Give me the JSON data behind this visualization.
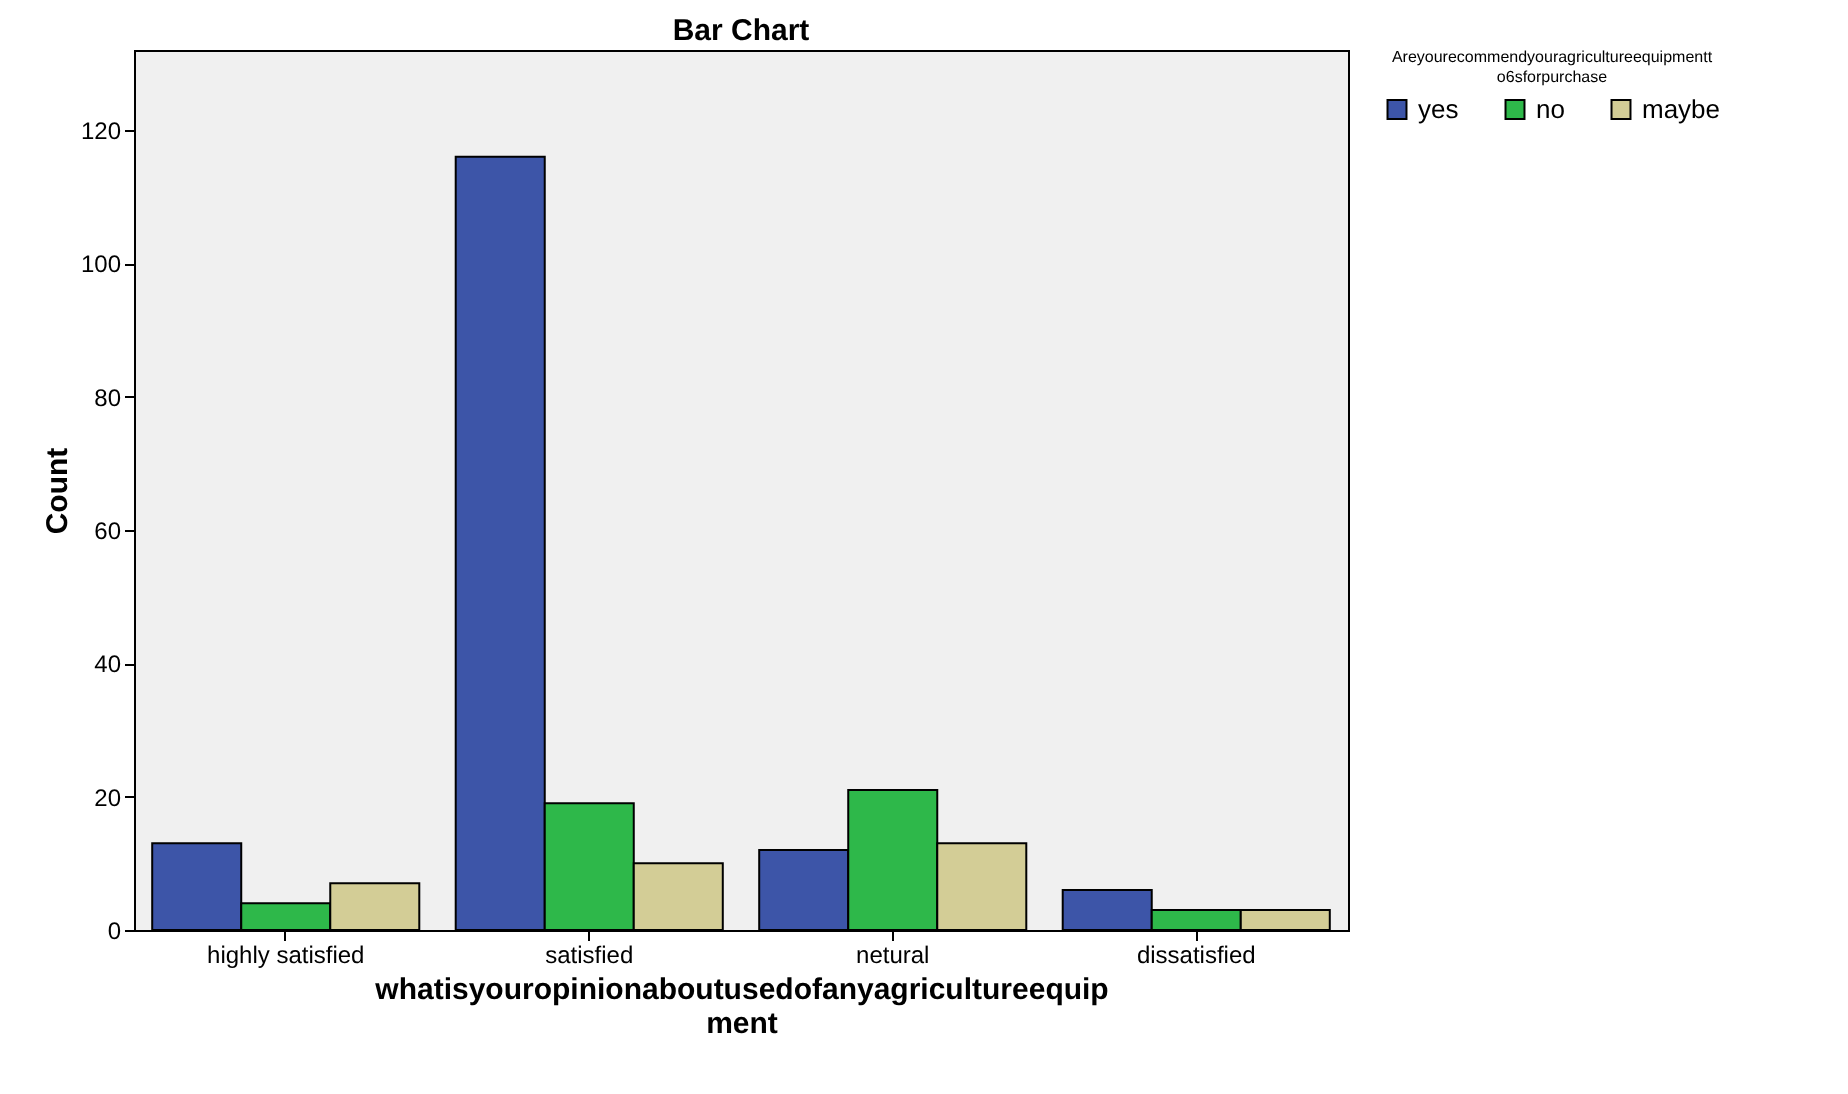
{
  "chart_data": {
    "type": "bar",
    "title": "Bar Chart",
    "xlabel": "whatisyouropinionaboutusedofanyagricultureequipment",
    "ylabel": "Count",
    "legend_title": "Areyourecommendyouragricultureequipmentto6sforpurchase",
    "categories": [
      "highly satisfied",
      "satisfied",
      "netural",
      "dissatisfied"
    ],
    "series": [
      {
        "name": "yes",
        "color": "#3d55a8",
        "values": [
          13,
          116,
          12,
          6
        ]
      },
      {
        "name": "no",
        "color": "#2eb84a",
        "values": [
          4,
          19,
          21,
          3
        ]
      },
      {
        "name": "maybe",
        "color": "#d3cd96",
        "values": [
          7,
          10,
          13,
          3
        ]
      }
    ],
    "ylim": [
      0,
      132
    ],
    "yticks": [
      0,
      20,
      40,
      60,
      80,
      100,
      120
    ],
    "grid": false,
    "legend": "top right"
  }
}
